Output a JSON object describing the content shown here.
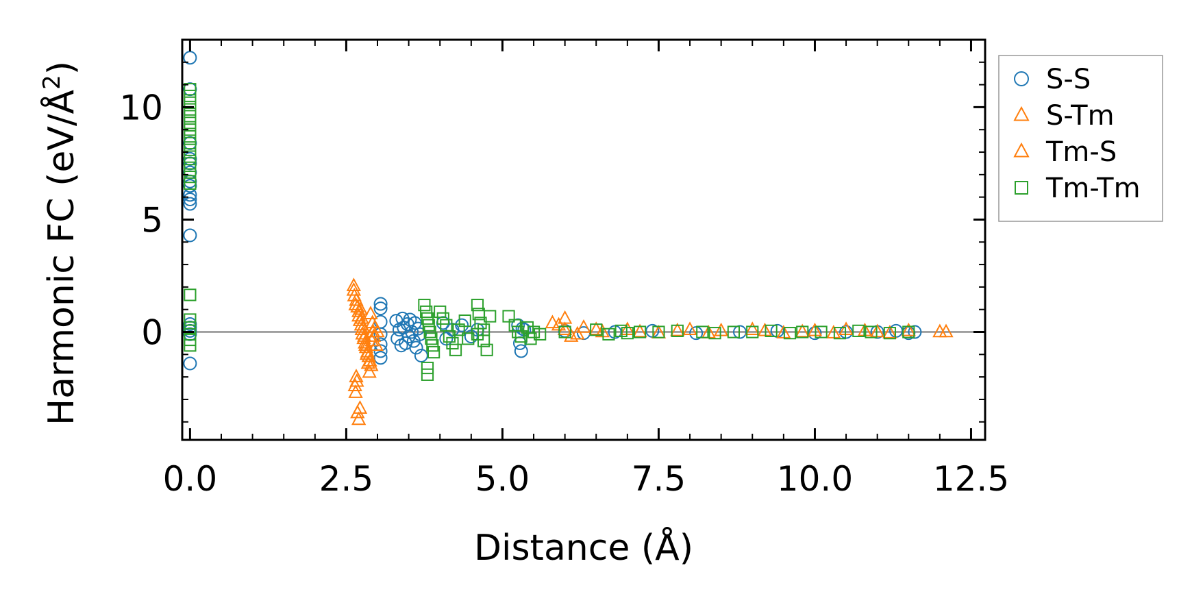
{
  "chart_data": {
    "type": "scatter",
    "title": "",
    "xlabel": "Distance (Å)",
    "ylabel_main": "Harmonic FC (eV/Å",
    "ylabel_sup": "2",
    "ylabel_close": ")",
    "xlim": [
      -0.125,
      12.725
    ],
    "ylim": [
      -4.8,
      13.0
    ],
    "xticks": [
      0.0,
      2.5,
      5.0,
      7.5,
      10.0,
      12.5
    ],
    "xtick_labels": [
      "0.0",
      "2.5",
      "5.0",
      "7.5",
      "10.0",
      "12.5"
    ],
    "yticks": [
      0,
      5,
      10
    ],
    "ytick_labels": [
      "0",
      "5",
      "10"
    ],
    "xminor_step": 0.5,
    "yminor_step": 1,
    "zero_line": true,
    "legend": {
      "position": "outside-right-top"
    },
    "series": [
      {
        "name": "S-S",
        "color": "#1f77b4",
        "marker": "circle",
        "points": [
          [
            0.0,
            12.2
          ],
          [
            0.0,
            10.8
          ],
          [
            0.0,
            8.4
          ],
          [
            0.0,
            7.7
          ],
          [
            0.0,
            7.5
          ],
          [
            0.0,
            7.1
          ],
          [
            0.0,
            6.7
          ],
          [
            0.0,
            6.5
          ],
          [
            0.0,
            6.1
          ],
          [
            0.0,
            5.9
          ],
          [
            0.0,
            5.7
          ],
          [
            0.0,
            4.3
          ],
          [
            0.0,
            0.35
          ],
          [
            0.0,
            0.2
          ],
          [
            0.0,
            0.05
          ],
          [
            0.0,
            -0.1
          ],
          [
            0.0,
            -1.4
          ],
          [
            3.05,
            1.25
          ],
          [
            3.05,
            1.05
          ],
          [
            3.05,
            0.45
          ],
          [
            3.05,
            -0.1
          ],
          [
            3.05,
            -0.55
          ],
          [
            3.05,
            -0.85
          ],
          [
            3.05,
            -1.15
          ],
          [
            3.3,
            0.5
          ],
          [
            3.32,
            -0.3
          ],
          [
            3.35,
            0.1
          ],
          [
            3.38,
            -0.6
          ],
          [
            3.4,
            0.6
          ],
          [
            3.42,
            0.2
          ],
          [
            3.45,
            -0.5
          ],
          [
            3.48,
            0.35
          ],
          [
            3.5,
            -0.2
          ],
          [
            3.52,
            0.55
          ],
          [
            3.55,
            0.0
          ],
          [
            3.58,
            -0.4
          ],
          [
            3.6,
            0.4
          ],
          [
            3.62,
            -0.7
          ],
          [
            3.65,
            0.15
          ],
          [
            3.68,
            -0.1
          ],
          [
            3.7,
            -1.05
          ],
          [
            4.05,
            0.4
          ],
          [
            4.1,
            -0.3
          ],
          [
            4.2,
            0.1
          ],
          [
            4.35,
            0.3
          ],
          [
            4.5,
            -0.2
          ],
          [
            4.6,
            0.1
          ],
          [
            5.25,
            0.3
          ],
          [
            5.28,
            -0.5
          ],
          [
            5.3,
            -0.85
          ],
          [
            5.32,
            0.15
          ],
          [
            5.35,
            0.1
          ],
          [
            6.0,
            0.05
          ],
          [
            6.3,
            -0.05
          ],
          [
            6.8,
            0.0
          ],
          [
            7.4,
            0.05
          ],
          [
            8.1,
            -0.05
          ],
          [
            8.8,
            0.0
          ],
          [
            9.4,
            0.05
          ],
          [
            10.0,
            -0.05
          ],
          [
            10.5,
            0.0
          ],
          [
            11.0,
            0.0
          ],
          [
            11.3,
            0.05
          ],
          [
            11.5,
            -0.05
          ],
          [
            11.6,
            0.0
          ]
        ]
      },
      {
        "name": "S-Tm",
        "color": "#ff7f0e",
        "marker": "triangle",
        "points": [
          [
            2.62,
            2.05
          ],
          [
            2.62,
            1.85
          ],
          [
            2.64,
            -2.4
          ],
          [
            2.65,
            -2.7
          ],
          [
            2.66,
            1.4
          ],
          [
            2.68,
            1.1
          ],
          [
            2.7,
            0.9
          ],
          [
            2.7,
            0.7
          ],
          [
            2.72,
            0.5
          ],
          [
            2.74,
            0.3
          ],
          [
            2.75,
            0.1
          ],
          [
            2.76,
            -0.1
          ],
          [
            2.78,
            -0.3
          ],
          [
            2.8,
            -0.5
          ],
          [
            2.82,
            -0.7
          ],
          [
            2.84,
            -0.9
          ],
          [
            2.86,
            -1.1
          ],
          [
            2.88,
            -1.3
          ],
          [
            2.9,
            -1.5
          ],
          [
            2.92,
            0.4
          ],
          [
            2.94,
            -0.2
          ],
          [
            2.96,
            0.2
          ],
          [
            2.98,
            -0.6
          ],
          [
            3.0,
            0.0
          ],
          [
            5.8,
            0.4
          ],
          [
            6.0,
            0.6
          ],
          [
            6.0,
            0.1
          ],
          [
            6.1,
            -0.2
          ],
          [
            6.3,
            0.2
          ],
          [
            6.6,
            0.0
          ],
          [
            7.0,
            0.1
          ],
          [
            7.5,
            -0.05
          ],
          [
            8.0,
            0.1
          ],
          [
            8.5,
            0.05
          ],
          [
            9.0,
            0.1
          ],
          [
            9.5,
            -0.05
          ],
          [
            10.0,
            0.05
          ],
          [
            10.5,
            0.1
          ],
          [
            11.0,
            0.0
          ],
          [
            11.5,
            0.05
          ]
        ]
      },
      {
        "name": "Tm-S",
        "color": "#ff7f0e",
        "marker": "triangle",
        "points": [
          [
            2.63,
            1.6
          ],
          [
            2.65,
            1.2
          ],
          [
            2.66,
            -2.0
          ],
          [
            2.67,
            -2.2
          ],
          [
            2.68,
            -3.6
          ],
          [
            2.7,
            -3.9
          ],
          [
            2.72,
            -3.4
          ],
          [
            2.73,
            1.0
          ],
          [
            2.75,
            0.6
          ],
          [
            2.77,
            0.2
          ],
          [
            2.79,
            -0.2
          ],
          [
            2.81,
            -0.6
          ],
          [
            2.83,
            -1.0
          ],
          [
            2.85,
            -1.4
          ],
          [
            2.87,
            -1.8
          ],
          [
            2.89,
            0.8
          ],
          [
            2.91,
            -0.4
          ],
          [
            2.93,
            0.0
          ],
          [
            5.9,
            0.3
          ],
          [
            6.2,
            -0.1
          ],
          [
            6.5,
            0.1
          ],
          [
            7.2,
            0.0
          ],
          [
            7.8,
            0.05
          ],
          [
            8.3,
            -0.05
          ],
          [
            9.2,
            0.05
          ],
          [
            9.8,
            0.0
          ],
          [
            10.3,
            -0.05
          ],
          [
            10.8,
            0.05
          ],
          [
            11.2,
            -0.05
          ],
          [
            12.0,
            0.0
          ],
          [
            12.1,
            0.0
          ]
        ]
      },
      {
        "name": "Tm-Tm",
        "color": "#2ca02c",
        "marker": "square",
        "points": [
          [
            0.0,
            10.8
          ],
          [
            0.0,
            10.5
          ],
          [
            0.0,
            10.2
          ],
          [
            0.0,
            9.9
          ],
          [
            0.0,
            9.6
          ],
          [
            0.0,
            9.3
          ],
          [
            0.0,
            9.0
          ],
          [
            0.0,
            8.7
          ],
          [
            0.0,
            8.4
          ],
          [
            0.0,
            8.1
          ],
          [
            0.0,
            7.8
          ],
          [
            0.0,
            7.5
          ],
          [
            0.0,
            7.2
          ],
          [
            0.0,
            6.9
          ],
          [
            0.0,
            6.6
          ],
          [
            0.0,
            1.65
          ],
          [
            0.0,
            0.55
          ],
          [
            0.0,
            0.2
          ],
          [
            0.0,
            -0.1
          ],
          [
            0.0,
            -0.35
          ],
          [
            0.0,
            -0.6
          ],
          [
            3.75,
            1.2
          ],
          [
            3.78,
            0.9
          ],
          [
            3.8,
            0.6
          ],
          [
            3.82,
            0.3
          ],
          [
            3.84,
            0.0
          ],
          [
            3.86,
            -0.3
          ],
          [
            3.88,
            -0.6
          ],
          [
            3.9,
            -0.9
          ],
          [
            3.8,
            -1.6
          ],
          [
            3.8,
            -1.9
          ],
          [
            4.0,
            0.9
          ],
          [
            4.05,
            0.6
          ],
          [
            4.1,
            0.3
          ],
          [
            4.15,
            -0.2
          ],
          [
            4.2,
            -0.5
          ],
          [
            4.25,
            -0.8
          ],
          [
            4.3,
            0.1
          ],
          [
            4.4,
            0.5
          ],
          [
            4.45,
            -0.3
          ],
          [
            4.6,
            1.2
          ],
          [
            4.62,
            0.8
          ],
          [
            4.65,
            0.4
          ],
          [
            4.7,
            -0.4
          ],
          [
            4.75,
            -0.8
          ],
          [
            4.8,
            0.7
          ],
          [
            4.6,
            -0.1
          ],
          [
            4.7,
            0.1
          ],
          [
            5.1,
            0.7
          ],
          [
            5.2,
            0.3
          ],
          [
            5.3,
            -0.2
          ],
          [
            5.4,
            0.2
          ],
          [
            5.5,
            0.0
          ],
          [
            5.6,
            -0.1
          ],
          [
            5.25,
            0.0
          ],
          [
            5.45,
            -0.3
          ],
          [
            6.0,
            0.0
          ],
          [
            6.5,
            0.1
          ],
          [
            6.7,
            -0.1
          ],
          [
            6.9,
            0.05
          ],
          [
            7.0,
            -0.05
          ],
          [
            7.2,
            0.0
          ],
          [
            7.5,
            0.0
          ],
          [
            7.8,
            0.05
          ],
          [
            8.2,
            0.0
          ],
          [
            8.4,
            -0.05
          ],
          [
            8.7,
            0.0
          ],
          [
            9.0,
            0.0
          ],
          [
            9.3,
            0.05
          ],
          [
            9.6,
            -0.05
          ],
          [
            9.8,
            0.0
          ],
          [
            10.1,
            0.0
          ],
          [
            10.4,
            -0.05
          ],
          [
            10.7,
            0.05
          ],
          [
            10.9,
            0.0
          ],
          [
            11.2,
            -0.05
          ],
          [
            11.5,
            0.0
          ]
        ]
      }
    ]
  }
}
